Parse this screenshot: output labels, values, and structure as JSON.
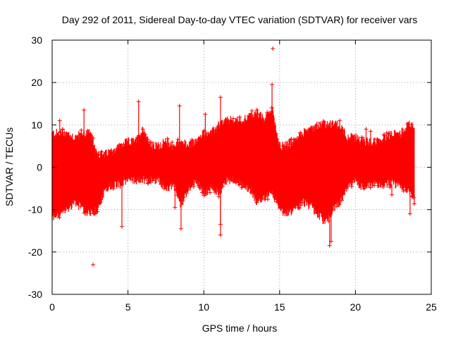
{
  "chart_data": {
    "type": "scatter",
    "title": "Day 292 of 2011, Sidereal Day-to-day VTEC variation (SDTVAR) for receiver vars",
    "xlabel": "GPS time / hours",
    "ylabel": "SDTVAR / TECUs",
    "xlim": [
      0,
      25
    ],
    "ylim": [
      -30,
      30
    ],
    "xticks": [
      0,
      5,
      10,
      15,
      20,
      25
    ],
    "yticks": [
      -30,
      -20,
      -10,
      0,
      10,
      20,
      30
    ],
    "grid": true,
    "marker": "+",
    "color": "#ff0000",
    "series": [
      {
        "name": "SDTVAR",
        "envelope": {
          "hours": [
            0,
            0.5,
            1,
            1.5,
            2,
            2.5,
            3,
            3.5,
            4,
            4.5,
            5,
            5.5,
            6,
            6.5,
            7,
            7.5,
            8,
            8.5,
            9,
            9.5,
            10,
            10.5,
            11,
            11.5,
            12,
            12.5,
            13,
            13.5,
            14,
            14.5,
            15,
            15.5,
            16,
            16.5,
            17,
            17.5,
            18,
            18.5,
            19,
            19.5,
            20,
            20.5,
            21,
            21.5,
            22,
            22.5,
            23,
            23.5,
            23.9
          ],
          "upper": [
            8,
            8,
            8,
            7,
            8,
            8,
            3,
            3,
            4,
            5,
            6,
            6,
            9,
            5,
            5,
            6,
            5,
            6,
            5,
            6,
            8,
            8,
            10,
            11,
            11,
            11,
            12,
            13,
            11,
            14,
            5,
            5,
            6,
            8,
            9,
            10,
            10,
            10,
            10,
            7,
            7,
            6,
            6,
            6,
            7,
            8,
            8,
            10,
            10
          ],
          "lower": [
            -12,
            -11,
            -10,
            -8,
            -10,
            -11,
            -10,
            -5,
            -4,
            -4,
            -3,
            -3,
            -3,
            -3,
            -3,
            -5,
            -4,
            -9,
            -5,
            -3,
            -6,
            -5,
            -6,
            -3,
            -3,
            -4,
            -5,
            -8,
            -7,
            -6,
            -10,
            -11,
            -10,
            -8,
            -9,
            -11,
            -13,
            -10,
            -8,
            -5,
            -3,
            -5,
            -4,
            -4,
            -4,
            -4,
            -4,
            -6,
            -8
          ]
        },
        "outliers": [
          {
            "x": 2.1,
            "y": 13.5
          },
          {
            "x": 2.7,
            "y": -23
          },
          {
            "x": 4.6,
            "y": -14
          },
          {
            "x": 5.7,
            "y": 15.5
          },
          {
            "x": 8.4,
            "y": 14.5
          },
          {
            "x": 8.1,
            "y": -9.5
          },
          {
            "x": 8.5,
            "y": -14.5
          },
          {
            "x": 10.1,
            "y": 12.5
          },
          {
            "x": 11.1,
            "y": 16.5
          },
          {
            "x": 11.1,
            "y": -13.5
          },
          {
            "x": 11.1,
            "y": -16
          },
          {
            "x": 14.55,
            "y": 28
          },
          {
            "x": 14.5,
            "y": 19.5
          },
          {
            "x": 18.3,
            "y": -18.5
          },
          {
            "x": 18.4,
            "y": -17.5
          },
          {
            "x": 23.6,
            "y": -11
          },
          {
            "x": 22.4,
            "y": -6.5
          },
          {
            "x": 22.2,
            "y": 8
          },
          {
            "x": 21.0,
            "y": 8.5
          },
          {
            "x": 20.7,
            "y": 9
          },
          {
            "x": 0.5,
            "y": 11
          },
          {
            "x": 0.7,
            "y": 9
          },
          {
            "x": 15.7,
            "y": 6.5
          },
          {
            "x": 16.4,
            "y": 6
          },
          {
            "x": 17.0,
            "y": 8
          }
        ]
      }
    ]
  }
}
